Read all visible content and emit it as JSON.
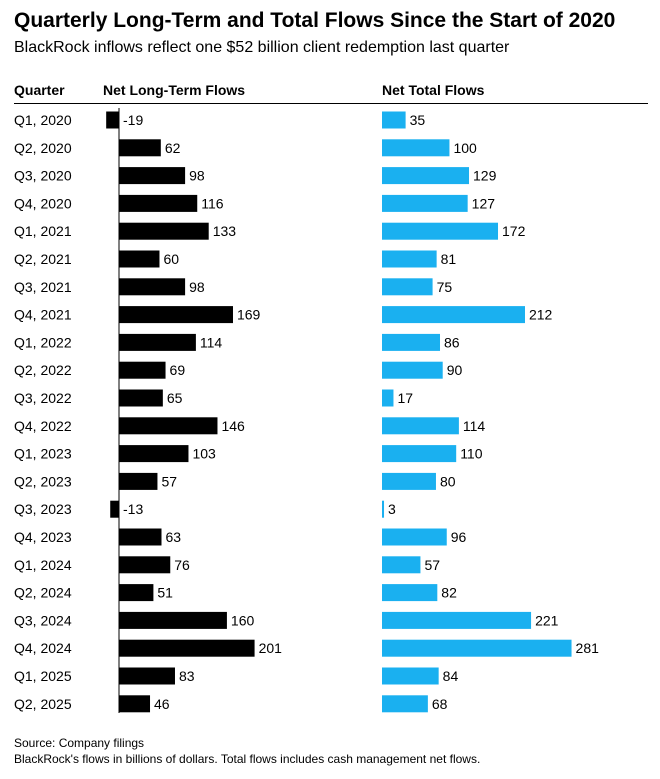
{
  "title": "Quarterly Long-Term and Total Flows Since the Start of 2020",
  "subtitle": "BlackRock inflows reflect one $52 billion client redemption last quarter",
  "columns": {
    "quarter": "Quarter",
    "long_term": "Net Long-Term Flows",
    "total": "Net Total Flows"
  },
  "colors": {
    "long_term": "#000000",
    "total": "#1ab0f0",
    "text": "#000000"
  },
  "chart_data": {
    "type": "bar",
    "orientation": "horizontal",
    "categories": [
      "Q1, 2020",
      "Q2, 2020",
      "Q3, 2020",
      "Q4, 2020",
      "Q1, 2021",
      "Q2, 2021",
      "Q3, 2021",
      "Q4, 2021",
      "Q1, 2022",
      "Q2, 2022",
      "Q3, 2022",
      "Q4, 2022",
      "Q1, 2023",
      "Q2, 2023",
      "Q3, 2023",
      "Q4, 2023",
      "Q1, 2024",
      "Q2, 2024",
      "Q3, 2024",
      "Q4, 2024",
      "Q1, 2025",
      "Q2, 2025"
    ],
    "series": [
      {
        "name": "Net Long-Term Flows",
        "values": [
          -19,
          62,
          98,
          116,
          133,
          60,
          98,
          169,
          114,
          69,
          65,
          146,
          103,
          57,
          -13,
          63,
          76,
          51,
          160,
          201,
          83,
          46
        ]
      },
      {
        "name": "Net Total Flows",
        "values": [
          35,
          100,
          129,
          127,
          172,
          81,
          75,
          212,
          86,
          90,
          17,
          114,
          110,
          80,
          3,
          96,
          57,
          82,
          221,
          281,
          84,
          68
        ]
      }
    ],
    "title": "Quarterly Long-Term and Total Flows Since the Start of 2020",
    "subtitle": "BlackRock inflows reflect one $52 billion client redemption last quarter",
    "data_labels": true,
    "grid": false
  },
  "footer": {
    "source": "Source: Company filings",
    "note": "BlackRock's flows in billions of dollars. Total flows includes cash management net flows."
  }
}
